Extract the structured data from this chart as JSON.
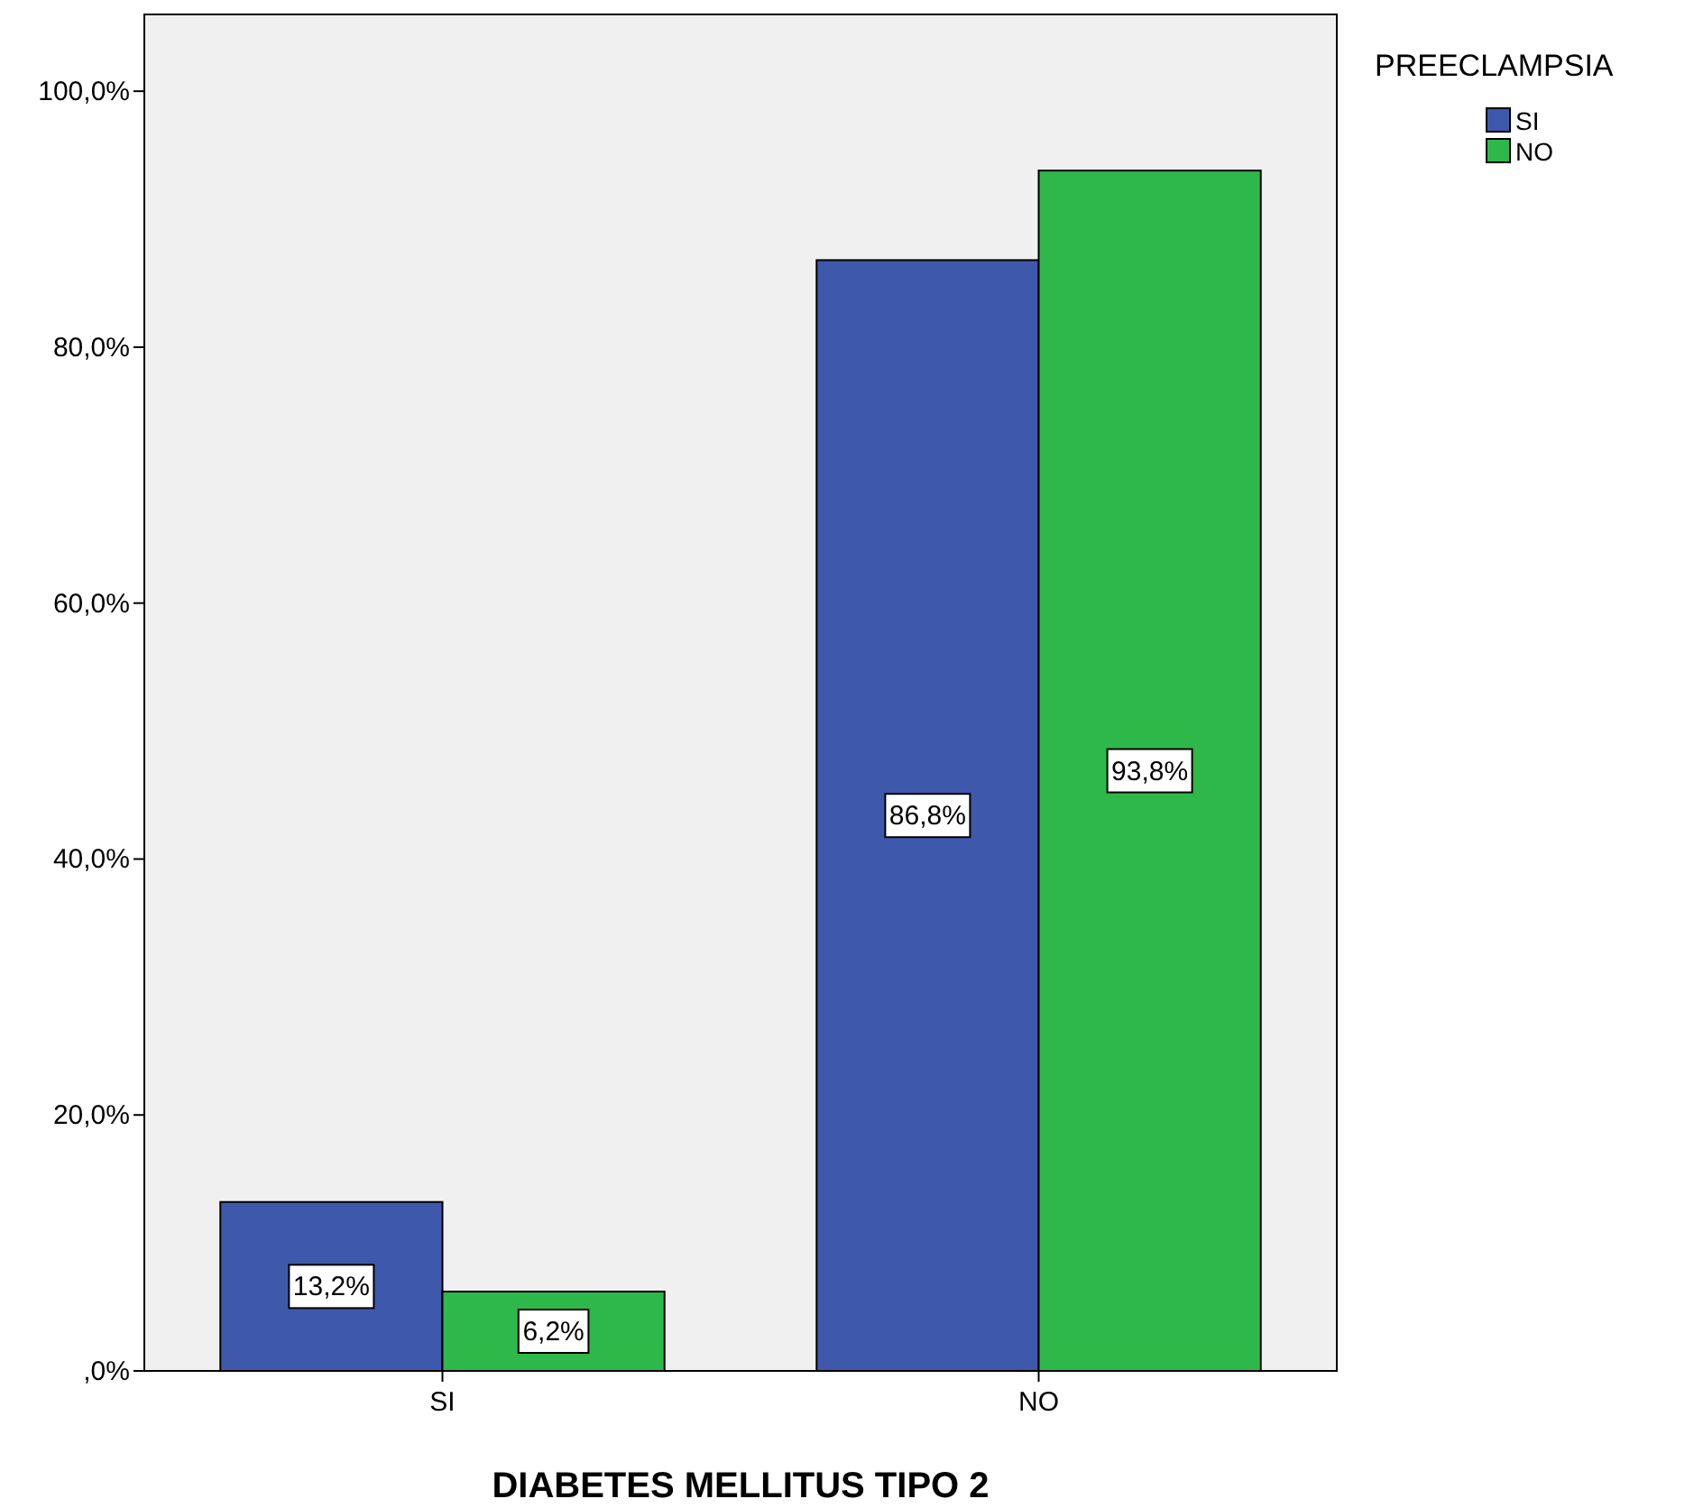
{
  "chart_data": {
    "type": "bar",
    "xlabel": "DIABETES MELLITUS TIPO 2",
    "legend_title": "PREECLAMPSIA",
    "categories": [
      "SI",
      "NO"
    ],
    "series": [
      {
        "name": "SI",
        "color": "#3e58ac",
        "values": [
          13.2,
          86.8
        ],
        "value_labels": [
          "13,2%",
          "86,8%"
        ]
      },
      {
        "name": "NO",
        "color": "#2fb84a",
        "values": [
          6.2,
          93.8
        ],
        "value_labels": [
          "6,2%",
          "93,8%"
        ]
      }
    ],
    "ylim": [
      0,
      106
    ],
    "yticks": [
      {
        "value": 0,
        "label": ",0%"
      },
      {
        "value": 20,
        "label": "20,0%"
      },
      {
        "value": 40,
        "label": "40,0%"
      },
      {
        "value": 60,
        "label": "60,0%"
      },
      {
        "value": 80,
        "label": "80,0%"
      },
      {
        "value": 100,
        "label": "100,0%"
      }
    ],
    "grid": false,
    "legend": "top right"
  }
}
